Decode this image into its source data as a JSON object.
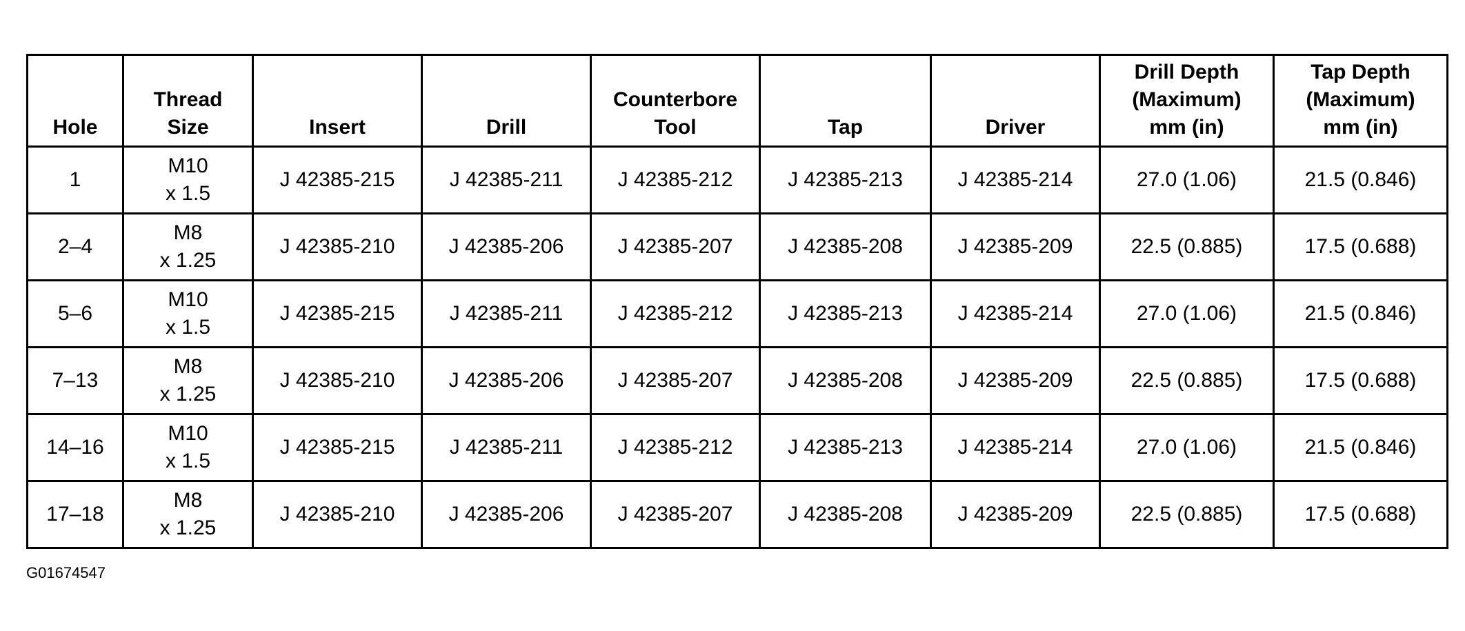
{
  "headers": [
    "Hole",
    "Thread\nSize",
    "Insert",
    "Drill",
    "Counterbore\nTool",
    "Tap",
    "Driver",
    "Drill Depth\n(Maximum)\nmm (in)",
    "Tap Depth\n(Maximum)\nmm (in)"
  ],
  "rows": [
    [
      "1",
      "M10\nx 1.5",
      "J 42385-215",
      "J 42385-211",
      "J 42385-212",
      "J 42385-213",
      "J 42385-214",
      "27.0 (1.06)",
      "21.5 (0.846)"
    ],
    [
      "2–4",
      "M8\nx 1.25",
      "J 42385-210",
      "J 42385-206",
      "J 42385-207",
      "J 42385-208",
      "J 42385-209",
      "22.5 (0.885)",
      "17.5 (0.688)"
    ],
    [
      "5–6",
      "M10\nx 1.5",
      "J 42385-215",
      "J 42385-211",
      "J 42385-212",
      "J 42385-213",
      "J 42385-214",
      "27.0 (1.06)",
      "21.5 (0.846)"
    ],
    [
      "7–13",
      "M8\nx 1.25",
      "J 42385-210",
      "J 42385-206",
      "J 42385-207",
      "J 42385-208",
      "J 42385-209",
      "22.5 (0.885)",
      "17.5 (0.688)"
    ],
    [
      "14–16",
      "M10\nx 1.5",
      "J 42385-215",
      "J 42385-211",
      "J 42385-212",
      "J 42385-213",
      "J 42385-214",
      "27.0 (1.06)",
      "21.5 (0.846)"
    ],
    [
      "17–18",
      "M8\nx 1.25",
      "J 42385-210",
      "J 42385-206",
      "J 42385-207",
      "J 42385-208",
      "J 42385-209",
      "22.5 (0.885)",
      "17.5 (0.688)"
    ]
  ],
  "caption": "G01674547"
}
